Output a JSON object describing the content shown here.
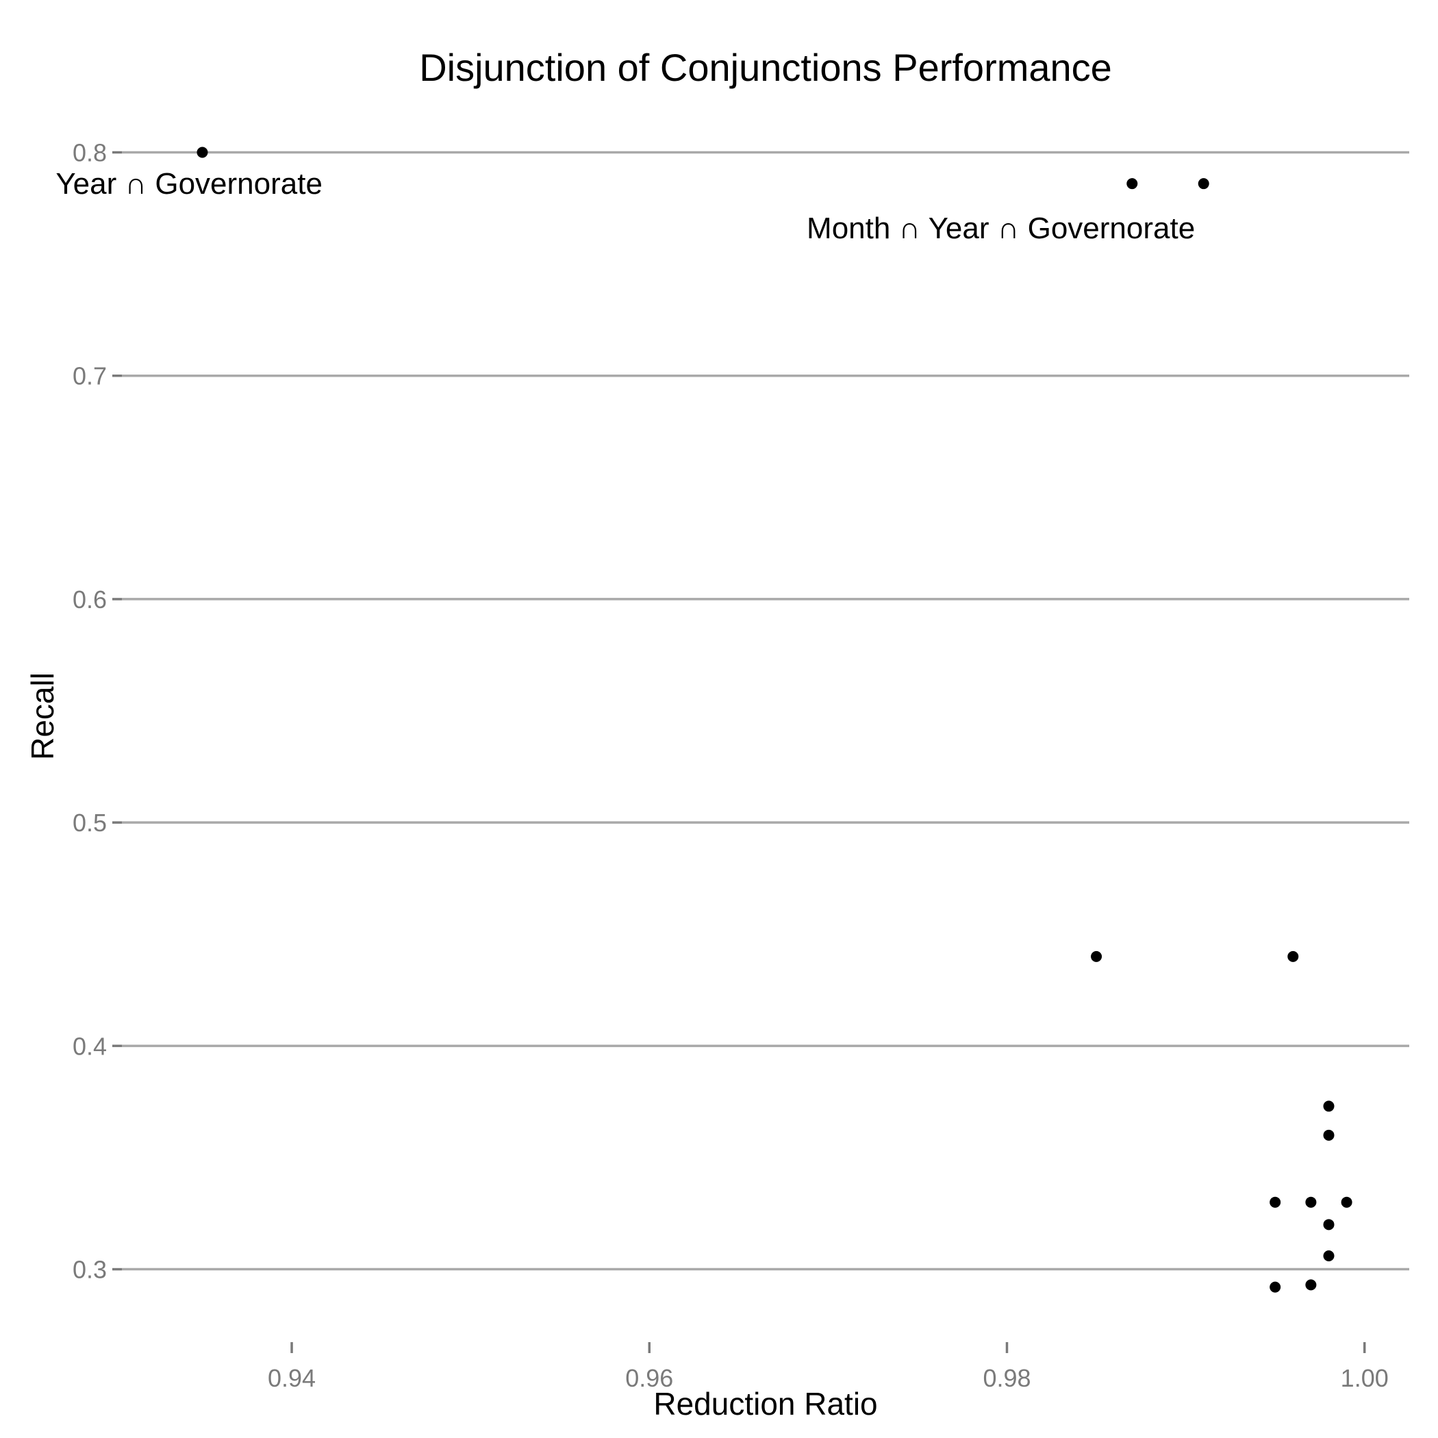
{
  "chart_data": {
    "type": "scatter",
    "title": "Disjunction of Conjunctions Performance",
    "xlabel": "Reduction Ratio",
    "ylabel": "Recall",
    "xlim": [
      0.9305,
      1.0025
    ],
    "ylim": [
      0.2735,
      0.8115
    ],
    "xticks": [
      0.94,
      0.96,
      0.98,
      1.0
    ],
    "xtick_labels": [
      "0.94",
      "0.96",
      "0.98",
      "1.00"
    ],
    "yticks": [
      0.3,
      0.4,
      0.5,
      0.6,
      0.7,
      0.8
    ],
    "ytick_labels": [
      "0.3",
      "0.4",
      "0.5",
      "0.6",
      "0.7",
      "0.8"
    ],
    "grid": "horizontal major",
    "legend": "none",
    "point_color": "#000000",
    "grid_color": "#a9a9a9",
    "points": [
      {
        "x": 0.935,
        "y": 0.8
      },
      {
        "x": 0.987,
        "y": 0.786
      },
      {
        "x": 0.991,
        "y": 0.786
      },
      {
        "x": 0.985,
        "y": 0.44
      },
      {
        "x": 0.996,
        "y": 0.44
      },
      {
        "x": 0.998,
        "y": 0.373
      },
      {
        "x": 0.998,
        "y": 0.36
      },
      {
        "x": 0.995,
        "y": 0.33
      },
      {
        "x": 0.997,
        "y": 0.33
      },
      {
        "x": 0.999,
        "y": 0.33
      },
      {
        "x": 0.998,
        "y": 0.32
      },
      {
        "x": 0.998,
        "y": 0.306
      },
      {
        "x": 0.995,
        "y": 0.292
      },
      {
        "x": 0.997,
        "y": 0.293
      }
    ],
    "annotations": [
      {
        "text": "Year ∩ Governorate",
        "x": 0.9268,
        "y": 0.7815
      },
      {
        "text": "Month ∩ Year ∩ Governorate",
        "x": 0.9688,
        "y": 0.7615
      }
    ]
  }
}
